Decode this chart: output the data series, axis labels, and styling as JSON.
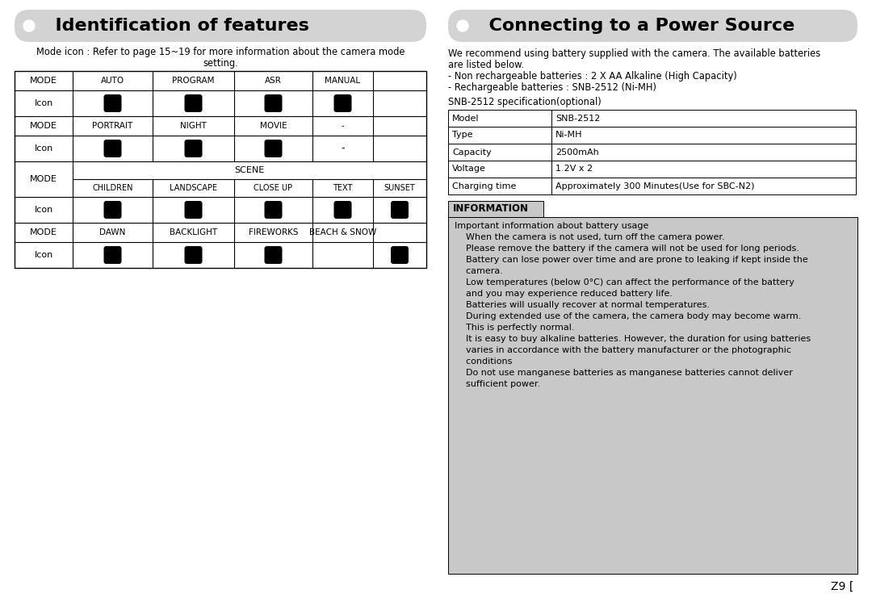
{
  "bg_color": "#ffffff",
  "left_title": "  Identification of features",
  "right_title": "  Connecting to a Power Source",
  "title_bg": "#d3d3d3",
  "left_subtitle_line1": "Mode icon : Refer to page 15~19 for more information about the camera mode",
  "left_subtitle_line2": "setting.",
  "right_intro_lines": [
    "We recommend using battery supplied with the camera. The available batteries",
    "are listed below.",
    "- Non rechargeable batteries : 2 X AA Alkaline (High Capacity)",
    "- Rechargeable batteries : SNB-2512 (Ni-MH)"
  ],
  "spec_label": "SNB-2512 specification(optional)",
  "spec_rows": [
    [
      "Model",
      "SNB-2512"
    ],
    [
      "Type",
      "Ni-MH"
    ],
    [
      "Capacity",
      "2500mAh"
    ],
    [
      "Voltage",
      "1.2V x 2"
    ],
    [
      "Charging time",
      "Approximately 300 Minutes(Use for SBC-N2)"
    ]
  ],
  "info_title": "INFORMATION",
  "info_bg": "#c8c8c8",
  "info_lines": [
    [
      "Important information about battery usage",
      false
    ],
    [
      "    When the camera is not used, turn off the camera power.",
      true
    ],
    [
      "    Please remove the battery if the camera will not be used for long periods.",
      true
    ],
    [
      "    Battery can lose power over time and are prone to leaking if kept inside the",
      true
    ],
    [
      "    camera.",
      false
    ],
    [
      "    Low temperatures (below 0°C) can affect the performance of the battery",
      true
    ],
    [
      "    and you may experience reduced battery life.",
      false
    ],
    [
      "    Batteries will usually recover at normal temperatures.",
      true
    ],
    [
      "    During extended use of the camera, the camera body may become warm.",
      true
    ],
    [
      "    This is perfectly normal.",
      false
    ],
    [
      "    It is easy to buy alkaline batteries. However, the duration for using batteries",
      true
    ],
    [
      "    varies in accordance with the battery manufacturer or the photographic",
      false
    ],
    [
      "    conditions",
      false
    ],
    [
      "    Do not use manganese batteries as manganese batteries cannot deliver",
      true
    ],
    [
      "    sufficient power.",
      false
    ]
  ],
  "page_num": "Z9 [",
  "mode1_cols": [
    "MODE",
    "AUTO",
    "PROGRAM",
    "ASR",
    "MANUAL"
  ],
  "mode2_cols": [
    "MODE",
    "PORTRAIT",
    "NIGHT",
    "MOVIE",
    "-"
  ],
  "mode3_cols": [
    "MODE",
    "DAWN",
    "BACKLIGHT",
    "FIREWORKS",
    "BEACH & SNOW"
  ],
  "scene_sub": [
    "CHILDREN",
    "LANDSCAPE",
    "CLOSE UP",
    "TEXT",
    "SUNSET"
  ]
}
